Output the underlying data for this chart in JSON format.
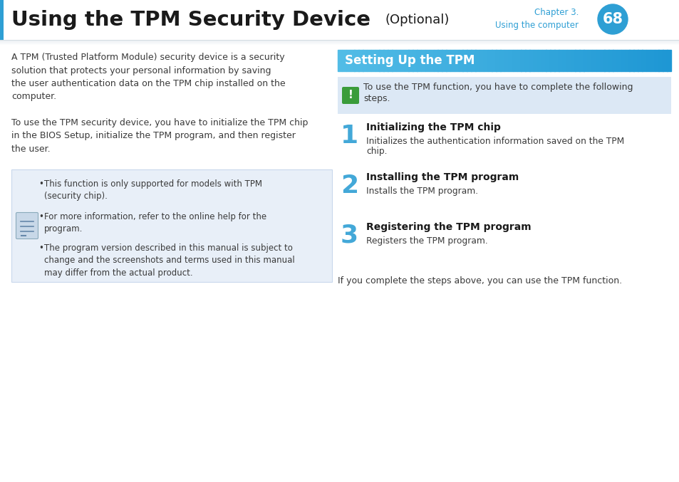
{
  "title_bold": "Using the TPM Security Device",
  "title_optional": "(Optional)",
  "chapter_label": "Chapter 3.",
  "chapter_sub": "Using the computer",
  "page_num": "68",
  "header_blue": "#2e9fd4",
  "bg_color": "#ffffff",
  "left_para1": "A TPM (Trusted Platform Module) security device is a security\nsolution that protects your personal information by saving\nthe user authentication data on the TPM chip installed on the\ncomputer.",
  "left_para2": "To use the TPM security device, you have to initialize the TPM chip\nin the BIOS Setup, initialize the TPM program, and then register\nthe user.",
  "note_bg": "#e8eff8",
  "note_border": "#c8d8ec",
  "note_bullets": [
    "This function is only supported for models with TPM\n(security chip).",
    "For more information, refer to the online help for the\nprogram.",
    "The program version described in this manual is subject to\nchange and the screenshots and terms used in this manual\nmay differ from the actual product."
  ],
  "section_header": "Setting Up the TPM",
  "section_header_bg_left": "#52bce6",
  "section_header_bg_right": "#1e97d4",
  "section_header_text_color": "#ffffff",
  "warning_bg": "#dce8f5",
  "warning_text_line1": "To use the TPM function, you have to complete the following",
  "warning_text_line2": "steps.",
  "warning_icon_bg": "#3a9c3a",
  "steps": [
    {
      "num": "1",
      "title": "Initializing the TPM chip",
      "desc_line1": "Initializes the authentication information saved on the TPM",
      "desc_line2": "chip."
    },
    {
      "num": "2",
      "title": "Installing the TPM program",
      "desc_line1": "Installs the TPM program.",
      "desc_line2": ""
    },
    {
      "num": "3",
      "title": "Registering the TPM program",
      "desc_line1": "Registers the TPM program.",
      "desc_line2": ""
    }
  ],
  "footer_text": "If you complete the steps above, you can use the TPM function.",
  "step_num_color": "#2e9fd4",
  "text_color": "#3a3a3a",
  "dark_text": "#1a1a1a"
}
